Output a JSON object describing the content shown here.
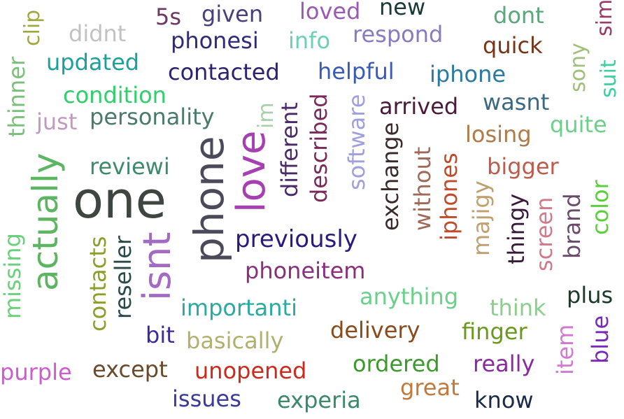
{
  "words": [
    {
      "text": "one",
      "color": "#3f4640"
    },
    {
      "text": "phone",
      "color": "#4a4a5a"
    },
    {
      "text": "love",
      "color": "#a63fb2"
    },
    {
      "text": "actually",
      "color": "#5bb561"
    },
    {
      "text": "isnt",
      "color": "#a36ac4"
    },
    {
      "text": "previously",
      "color": "#2a1a7e"
    },
    {
      "text": "phoneitem",
      "color": "#8a2f7c"
    },
    {
      "text": "contacted",
      "color": "#2a2470"
    },
    {
      "text": "phonesi",
      "color": "#2e2a7c"
    },
    {
      "text": "updated",
      "color": "#1aa29a"
    },
    {
      "text": "condition",
      "color": "#2fd06a"
    },
    {
      "text": "personality",
      "color": "#4a7a6a"
    },
    {
      "text": "reviewi",
      "color": "#3d8a6e"
    },
    {
      "text": "just",
      "color": "#c09ac0"
    },
    {
      "text": "didnt",
      "color": "#c2c2c2"
    },
    {
      "text": "5s",
      "color": "#6a3a62"
    },
    {
      "text": "given",
      "color": "#4a3f7a"
    },
    {
      "text": "loved",
      "color": "#9a5ab4"
    },
    {
      "text": "new",
      "color": "#1a3a3a"
    },
    {
      "text": "dont",
      "color": "#5aa87a"
    },
    {
      "text": "info",
      "color": "#6ad0b8"
    },
    {
      "text": "respond",
      "color": "#8a7ac0"
    },
    {
      "text": "quick",
      "color": "#7a3418"
    },
    {
      "text": "helpful",
      "color": "#3a5ab8"
    },
    {
      "text": "iphone",
      "color": "#2a7aa2"
    },
    {
      "text": "arrived",
      "color": "#4a1a3a"
    },
    {
      "text": "wasnt",
      "color": "#3a6a82"
    },
    {
      "text": "quite",
      "color": "#6ad08a"
    },
    {
      "text": "losing",
      "color": "#b07a4a"
    },
    {
      "text": "bigger",
      "color": "#c05a4a"
    },
    {
      "text": "importanti",
      "color": "#2aaaa0"
    },
    {
      "text": "anything",
      "color": "#6ad08a"
    },
    {
      "text": "plus",
      "color": "#1a3a2a"
    },
    {
      "text": "think",
      "color": "#8ad08a"
    },
    {
      "text": "delivery",
      "color": "#8a4a1a"
    },
    {
      "text": "finger",
      "color": "#6a9a1a"
    },
    {
      "text": "bit",
      "color": "#3a2aa0"
    },
    {
      "text": "basically",
      "color": "#b0b070"
    },
    {
      "text": "ordered",
      "color": "#3a9a2a"
    },
    {
      "text": "really",
      "color": "#8a2aa0"
    },
    {
      "text": "except",
      "color": "#6a4a2a"
    },
    {
      "text": "unopened",
      "color": "#d0281a"
    },
    {
      "text": "great",
      "color": "#c07a3a"
    },
    {
      "text": "purple",
      "color": "#d05ad0"
    },
    {
      "text": "issues",
      "color": "#3a3a9a"
    },
    {
      "text": "experia",
      "color": "#3a8a6a"
    },
    {
      "text": "know",
      "color": "#1a2a4a"
    },
    {
      "text": "clip",
      "color": "#a0a83a"
    },
    {
      "text": "thinner",
      "color": "#7ac07a"
    },
    {
      "text": "missing",
      "color": "#6ad07a"
    },
    {
      "text": "contacts",
      "color": "#8aa02a"
    },
    {
      "text": "reseller",
      "color": "#2a4a4a"
    },
    {
      "text": "im",
      "color": "#a8d0a8"
    },
    {
      "text": "different",
      "color": "#4a2a6a"
    },
    {
      "text": "described",
      "color": "#7a2a5a"
    },
    {
      "text": "software",
      "color": "#a0a0e0"
    },
    {
      "text": "exchange",
      "color": "#3a2a2a"
    },
    {
      "text": "without",
      "color": "#a06a5a"
    },
    {
      "text": "iphones",
      "color": "#c04a2a"
    },
    {
      "text": "majigy",
      "color": "#c0a070"
    },
    {
      "text": "thingy",
      "color": "#3a1a3a"
    },
    {
      "text": "screen",
      "color": "#d07a8a"
    },
    {
      "text": "brand",
      "color": "#6a4a6a"
    },
    {
      "text": "color",
      "color": "#5ad03a"
    },
    {
      "text": "sony",
      "color": "#a0c07a"
    },
    {
      "text": "suit",
      "color": "#3ad0a0"
    },
    {
      "text": "sim",
      "color": "#9a3a6a"
    },
    {
      "text": "item",
      "color": "#d07ad0"
    },
    {
      "text": "blue",
      "color": "#7a2ab8"
    }
  ]
}
